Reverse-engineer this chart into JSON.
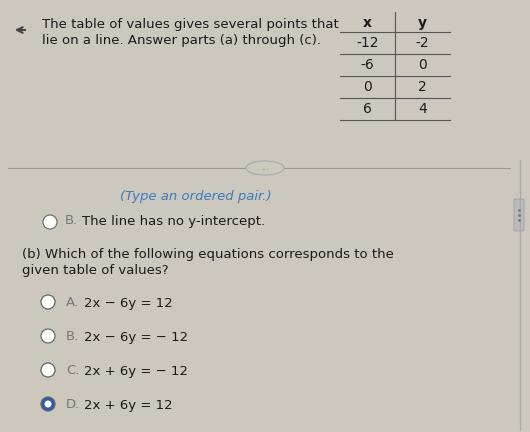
{
  "background_color": "#cdc8be",
  "title_line1": "The table of values gives several points that",
  "title_line2": "lie on a line. Answer parts (a) through (c).",
  "title_fontsize": 9.5,
  "table": {
    "headers": [
      "x",
      "y"
    ],
    "rows": [
      [
        "-12",
        "-2"
      ],
      [
        "-6",
        "0"
      ],
      [
        "0",
        "2"
      ],
      [
        "6",
        "4"
      ]
    ]
  },
  "divider_label": "...",
  "type_hint": "(Type an ordered pair.)",
  "type_hint_color": "#3a7abf",
  "option_b_text": "The line has no y-intercept.",
  "part_b_question_line1": "(b) Which of the following equations corresponds to the",
  "part_b_question_line2": "given table of values?",
  "choices": [
    {
      "label": "A.",
      "text": "2x − 6y = 12",
      "selected": false
    },
    {
      "label": "B.",
      "text": "2x − 6y = − 12",
      "selected": false
    },
    {
      "label": "C.",
      "text": "2x + 6y = − 12",
      "selected": false
    },
    {
      "label": "D.",
      "text": "2x + 6y = 12",
      "selected": true
    }
  ],
  "radio_selected_fill": "#2a5faa",
  "radio_unselected_fill": "white",
  "radio_border": "#666666",
  "text_color": "#1a1a1a",
  "label_gray": "#777777",
  "line_color": "#999999",
  "table_line_color": "#555555"
}
